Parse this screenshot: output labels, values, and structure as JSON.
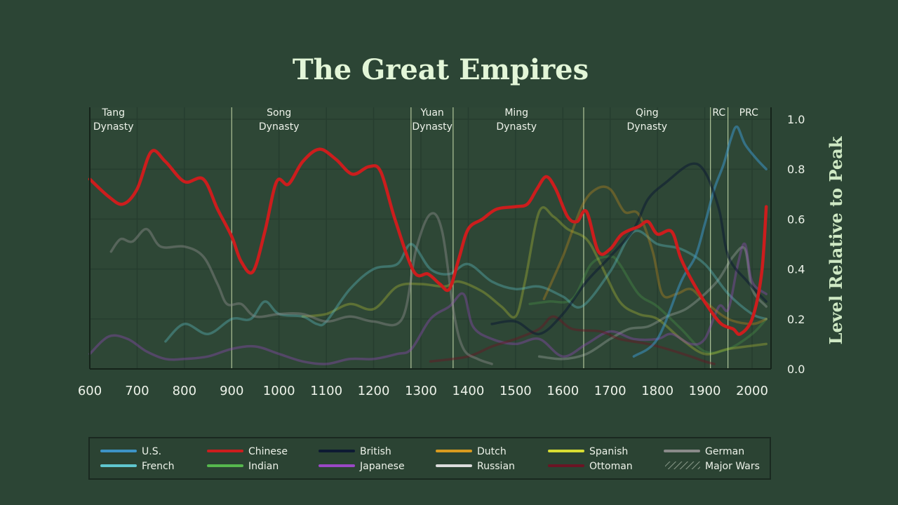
{
  "colors": {
    "background": "#2c4535",
    "plot_bg": "#2e4736",
    "grid": "#263d2f",
    "dynasty_line": "#c9dcac",
    "legend_bg": "#2b4333",
    "legend_border": "#1a2920"
  },
  "chart_data": {
    "type": "line",
    "title": "The Great Empires",
    "ylabel": "Level Relative to Peak",
    "xlabel": "",
    "xlim": [
      600,
      2030
    ],
    "ylim": [
      0,
      1.05
    ],
    "x_ticks": [
      "600",
      "700",
      "800",
      "900",
      "1000",
      "1100",
      "1200",
      "1300",
      "1400",
      "1500",
      "1600",
      "1700",
      "1800",
      "1900",
      "2000"
    ],
    "y_ticks": [
      "0.0",
      "0.2",
      "0.4",
      "0.6",
      "0.8",
      "1.0"
    ],
    "grid": true,
    "legend_position": "bottom",
    "dynasties": [
      {
        "line1": "Tang",
        "line2": "Dynasty",
        "label_year": 650
      },
      {
        "line1": "Song",
        "line2": "Dynasty",
        "label_year": 1000
      },
      {
        "line1": "Yuan",
        "line2": "Dynasty",
        "label_year": 1324
      },
      {
        "line1": "Ming",
        "line2": "Dynasty",
        "label_year": 1502
      },
      {
        "line1": "Qing",
        "line2": "Dynasty",
        "label_year": 1778
      },
      {
        "line1": "RC",
        "line2": "",
        "label_year": 1930
      },
      {
        "line1": "PRC",
        "line2": "",
        "label_year": 1993
      }
    ],
    "dynasty_boundaries": [
      900,
      1279,
      1368,
      1644,
      1912,
      1949
    ],
    "series": [
      {
        "name": "Chinese",
        "color": "#cc1d1d",
        "width": 4.5,
        "opacity": 1,
        "points": [
          [
            600,
            0.76
          ],
          [
            640,
            0.69
          ],
          [
            670,
            0.66
          ],
          [
            700,
            0.72
          ],
          [
            730,
            0.87
          ],
          [
            760,
            0.83
          ],
          [
            800,
            0.75
          ],
          [
            840,
            0.76
          ],
          [
            870,
            0.64
          ],
          [
            900,
            0.53
          ],
          [
            920,
            0.43
          ],
          [
            945,
            0.39
          ],
          [
            970,
            0.55
          ],
          [
            995,
            0.75
          ],
          [
            1020,
            0.74
          ],
          [
            1050,
            0.83
          ],
          [
            1085,
            0.88
          ],
          [
            1120,
            0.84
          ],
          [
            1155,
            0.78
          ],
          [
            1190,
            0.81
          ],
          [
            1215,
            0.79
          ],
          [
            1245,
            0.6
          ],
          [
            1285,
            0.39
          ],
          [
            1315,
            0.38
          ],
          [
            1340,
            0.34
          ],
          [
            1360,
            0.32
          ],
          [
            1380,
            0.44
          ],
          [
            1400,
            0.56
          ],
          [
            1430,
            0.6
          ],
          [
            1460,
            0.64
          ],
          [
            1500,
            0.65
          ],
          [
            1525,
            0.66
          ],
          [
            1545,
            0.72
          ],
          [
            1565,
            0.77
          ],
          [
            1585,
            0.72
          ],
          [
            1610,
            0.61
          ],
          [
            1630,
            0.59
          ],
          [
            1650,
            0.63
          ],
          [
            1675,
            0.47
          ],
          [
            1700,
            0.48
          ],
          [
            1725,
            0.54
          ],
          [
            1760,
            0.57
          ],
          [
            1780,
            0.59
          ],
          [
            1800,
            0.54
          ],
          [
            1830,
            0.55
          ],
          [
            1850,
            0.44
          ],
          [
            1880,
            0.33
          ],
          [
            1910,
            0.24
          ],
          [
            1935,
            0.18
          ],
          [
            1960,
            0.16
          ],
          [
            1975,
            0.14
          ],
          [
            2000,
            0.2
          ],
          [
            2020,
            0.38
          ],
          [
            2030,
            0.65
          ]
        ]
      },
      {
        "name": "U.S.",
        "color": "#3d93c6",
        "width": 3.5,
        "opacity": 0.55,
        "points": [
          [
            1750,
            0.05
          ],
          [
            1800,
            0.12
          ],
          [
            1850,
            0.35
          ],
          [
            1880,
            0.45
          ],
          [
            1900,
            0.58
          ],
          [
            1920,
            0.72
          ],
          [
            1940,
            0.82
          ],
          [
            1955,
            0.92
          ],
          [
            1968,
            0.97
          ],
          [
            1985,
            0.9
          ],
          [
            2010,
            0.84
          ],
          [
            2030,
            0.8
          ]
        ]
      },
      {
        "name": "French",
        "color": "#5fc6cf",
        "width": 3.5,
        "opacity": 0.35,
        "points": [
          [
            760,
            0.11
          ],
          [
            800,
            0.18
          ],
          [
            850,
            0.14
          ],
          [
            900,
            0.2
          ],
          [
            940,
            0.2
          ],
          [
            970,
            0.27
          ],
          [
            1000,
            0.22
          ],
          [
            1050,
            0.21
          ],
          [
            1080,
            0.18
          ],
          [
            1100,
            0.19
          ],
          [
            1150,
            0.32
          ],
          [
            1200,
            0.4
          ],
          [
            1250,
            0.42
          ],
          [
            1280,
            0.5
          ],
          [
            1320,
            0.4
          ],
          [
            1360,
            0.38
          ],
          [
            1400,
            0.42
          ],
          [
            1450,
            0.35
          ],
          [
            1500,
            0.32
          ],
          [
            1550,
            0.33
          ],
          [
            1600,
            0.29
          ],
          [
            1640,
            0.25
          ],
          [
            1700,
            0.39
          ],
          [
            1750,
            0.55
          ],
          [
            1800,
            0.5
          ],
          [
            1850,
            0.48
          ],
          [
            1900,
            0.42
          ],
          [
            1950,
            0.3
          ],
          [
            2000,
            0.22
          ],
          [
            2030,
            0.2
          ]
        ]
      },
      {
        "name": "British",
        "color": "#0d1a33",
        "width": 3.5,
        "opacity": 0.55,
        "points": [
          [
            1450,
            0.18
          ],
          [
            1500,
            0.19
          ],
          [
            1550,
            0.14
          ],
          [
            1600,
            0.22
          ],
          [
            1650,
            0.35
          ],
          [
            1700,
            0.45
          ],
          [
            1750,
            0.56
          ],
          [
            1780,
            0.68
          ],
          [
            1820,
            0.75
          ],
          [
            1870,
            0.82
          ],
          [
            1900,
            0.79
          ],
          [
            1930,
            0.64
          ],
          [
            1950,
            0.45
          ],
          [
            1990,
            0.35
          ],
          [
            2030,
            0.27
          ]
        ]
      },
      {
        "name": "Indian",
        "color": "#56b84e",
        "width": 3.5,
        "opacity": 0.25,
        "points": [
          [
            1530,
            0.26
          ],
          [
            1570,
            0.27
          ],
          [
            1620,
            0.28
          ],
          [
            1660,
            0.42
          ],
          [
            1700,
            0.45
          ],
          [
            1720,
            0.42
          ],
          [
            1760,
            0.3
          ],
          [
            1800,
            0.25
          ],
          [
            1850,
            0.16
          ],
          [
            1900,
            0.07
          ],
          [
            1950,
            0.08
          ],
          [
            2000,
            0.14
          ],
          [
            2030,
            0.2
          ]
        ]
      },
      {
        "name": "Japanese",
        "color": "#9a48c6",
        "width": 3.5,
        "opacity": 0.35,
        "points": [
          [
            600,
            0.06
          ],
          [
            640,
            0.13
          ],
          [
            680,
            0.12
          ],
          [
            720,
            0.07
          ],
          [
            760,
            0.04
          ],
          [
            800,
            0.04
          ],
          [
            850,
            0.05
          ],
          [
            900,
            0.08
          ],
          [
            950,
            0.09
          ],
          [
            1000,
            0.06
          ],
          [
            1050,
            0.03
          ],
          [
            1100,
            0.02
          ],
          [
            1150,
            0.04
          ],
          [
            1200,
            0.04
          ],
          [
            1250,
            0.06
          ],
          [
            1280,
            0.08
          ],
          [
            1320,
            0.2
          ],
          [
            1360,
            0.25
          ],
          [
            1390,
            0.3
          ],
          [
            1410,
            0.17
          ],
          [
            1450,
            0.12
          ],
          [
            1500,
            0.1
          ],
          [
            1550,
            0.12
          ],
          [
            1600,
            0.05
          ],
          [
            1650,
            0.1
          ],
          [
            1700,
            0.15
          ],
          [
            1750,
            0.12
          ],
          [
            1800,
            0.12
          ],
          [
            1830,
            0.14
          ],
          [
            1870,
            0.1
          ],
          [
            1900,
            0.12
          ],
          [
            1930,
            0.25
          ],
          [
            1950,
            0.24
          ],
          [
            1970,
            0.42
          ],
          [
            1985,
            0.5
          ],
          [
            2000,
            0.35
          ],
          [
            2030,
            0.3
          ]
        ]
      },
      {
        "name": "Dutch",
        "color": "#c98c1a",
        "width": 3.5,
        "opacity": 0.35,
        "points": [
          [
            1560,
            0.28
          ],
          [
            1600,
            0.45
          ],
          [
            1640,
            0.65
          ],
          [
            1670,
            0.72
          ],
          [
            1700,
            0.72
          ],
          [
            1730,
            0.63
          ],
          [
            1760,
            0.62
          ],
          [
            1790,
            0.47
          ],
          [
            1810,
            0.3
          ],
          [
            1840,
            0.3
          ],
          [
            1870,
            0.32
          ],
          [
            1900,
            0.27
          ],
          [
            1950,
            0.2
          ],
          [
            2000,
            0.18
          ],
          [
            2030,
            0.2
          ]
        ]
      },
      {
        "name": "Spanish",
        "color": "#d8dd33",
        "width": 3.5,
        "opacity": 0.28,
        "points": [
          [
            1050,
            0.21
          ],
          [
            1100,
            0.22
          ],
          [
            1150,
            0.26
          ],
          [
            1200,
            0.24
          ],
          [
            1250,
            0.33
          ],
          [
            1300,
            0.34
          ],
          [
            1350,
            0.33
          ],
          [
            1380,
            0.35
          ],
          [
            1430,
            0.31
          ],
          [
            1470,
            0.25
          ],
          [
            1500,
            0.21
          ],
          [
            1520,
            0.35
          ],
          [
            1550,
            0.63
          ],
          [
            1580,
            0.61
          ],
          [
            1610,
            0.56
          ],
          [
            1650,
            0.52
          ],
          [
            1680,
            0.42
          ],
          [
            1720,
            0.27
          ],
          [
            1760,
            0.22
          ],
          [
            1800,
            0.2
          ],
          [
            1850,
            0.12
          ],
          [
            1900,
            0.06
          ],
          [
            1950,
            0.08
          ],
          [
            2030,
            0.1
          ]
        ]
      },
      {
        "name": "Russian",
        "color": "#dcdcdc",
        "width": 3.5,
        "opacity": 0.25,
        "points": [
          [
            1550,
            0.05
          ],
          [
            1600,
            0.04
          ],
          [
            1650,
            0.06
          ],
          [
            1700,
            0.12
          ],
          [
            1740,
            0.16
          ],
          [
            1780,
            0.17
          ],
          [
            1820,
            0.21
          ],
          [
            1860,
            0.24
          ],
          [
            1900,
            0.3
          ],
          [
            1930,
            0.36
          ],
          [
            1960,
            0.45
          ],
          [
            1985,
            0.48
          ],
          [
            2000,
            0.32
          ],
          [
            2030,
            0.25
          ]
        ]
      },
      {
        "name": "Ottoman",
        "color": "#6b1424",
        "width": 3.5,
        "opacity": 0.45,
        "points": [
          [
            1320,
            0.03
          ],
          [
            1400,
            0.05
          ],
          [
            1450,
            0.09
          ],
          [
            1500,
            0.12
          ],
          [
            1550,
            0.16
          ],
          [
            1580,
            0.21
          ],
          [
            1620,
            0.16
          ],
          [
            1680,
            0.15
          ],
          [
            1720,
            0.12
          ],
          [
            1780,
            0.1
          ],
          [
            1820,
            0.08
          ],
          [
            1870,
            0.05
          ],
          [
            1900,
            0.03
          ],
          [
            1920,
            0.02
          ]
        ]
      },
      {
        "name": "German",
        "color": "#8a8a8a",
        "width": 3.5,
        "opacity": 0.45,
        "points": [
          [
            645,
            0.47
          ],
          [
            665,
            0.52
          ],
          [
            690,
            0.51
          ],
          [
            720,
            0.56
          ],
          [
            750,
            0.49
          ],
          [
            800,
            0.49
          ],
          [
            840,
            0.45
          ],
          [
            870,
            0.34
          ],
          [
            890,
            0.26
          ],
          [
            920,
            0.26
          ],
          [
            950,
            0.21
          ],
          [
            1000,
            0.22
          ],
          [
            1050,
            0.22
          ],
          [
            1100,
            0.19
          ],
          [
            1150,
            0.21
          ],
          [
            1200,
            0.19
          ],
          [
            1260,
            0.2
          ],
          [
            1290,
            0.48
          ],
          [
            1320,
            0.62
          ],
          [
            1345,
            0.55
          ],
          [
            1370,
            0.22
          ],
          [
            1390,
            0.08
          ],
          [
            1420,
            0.04
          ],
          [
            1450,
            0.02
          ]
        ]
      }
    ],
    "legend": [
      {
        "name": "U.S.",
        "color": "#3d93c6"
      },
      {
        "name": "Chinese",
        "color": "#cc1d1d"
      },
      {
        "name": "British",
        "color": "#0d1a33"
      },
      {
        "name": "Dutch",
        "color": "#d89a1f"
      },
      {
        "name": "Spanish",
        "color": "#d8dd33"
      },
      {
        "name": "German",
        "color": "#8a8a8a"
      },
      {
        "name": "French",
        "color": "#5fc6cf"
      },
      {
        "name": "Indian",
        "color": "#56b84e"
      },
      {
        "name": "Japanese",
        "color": "#9a48c6"
      },
      {
        "name": "Russian",
        "color": "#dcdcdc"
      },
      {
        "name": "Ottoman",
        "color": "#6b1424"
      },
      {
        "name": "Major Wars",
        "color": "#8a9a8a"
      }
    ]
  }
}
